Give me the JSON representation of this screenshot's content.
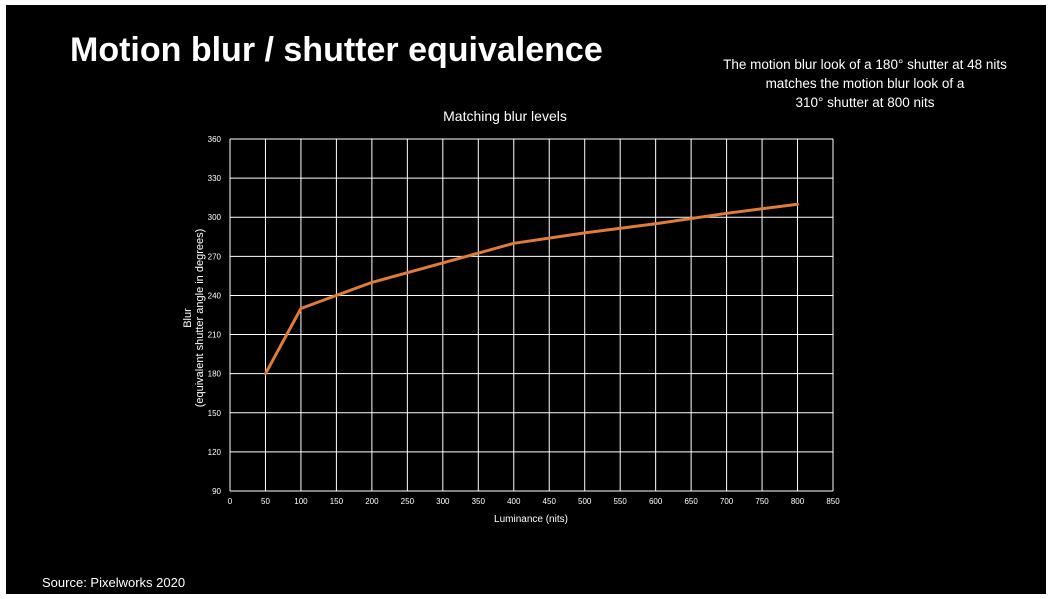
{
  "slide": {
    "title": "Motion blur / shutter equivalence",
    "annotation_lines": [
      "The motion blur look of a 180° shutter at 48 nits",
      "matches the motion blur look of a",
      "310° shutter at 800 nits"
    ],
    "source": "Source: Pixelworks 2020",
    "background_color": "#000000",
    "text_color": "#ffffff"
  },
  "chart_data": {
    "type": "line",
    "title": "Matching blur levels",
    "xlabel": "Luminance (nits)",
    "ylabel_lines": [
      "Blur",
      "(equivalent shutter angle in degrees)"
    ],
    "xlim": [
      0,
      850
    ],
    "ylim": [
      90,
      360
    ],
    "x_ticks": [
      0,
      50,
      100,
      150,
      200,
      250,
      300,
      350,
      400,
      450,
      500,
      550,
      600,
      650,
      700,
      750,
      800,
      850
    ],
    "y_ticks": [
      90,
      120,
      150,
      180,
      210,
      240,
      270,
      300,
      330,
      360
    ],
    "grid": true,
    "legend": "none",
    "series": [
      {
        "color": "#e07b39",
        "x": [
          50,
          100,
          150,
          200,
          300,
          400,
          500,
          600,
          700,
          800
        ],
        "y": [
          180,
          230,
          240,
          250,
          265,
          280,
          288,
          295,
          303,
          310
        ]
      }
    ]
  }
}
